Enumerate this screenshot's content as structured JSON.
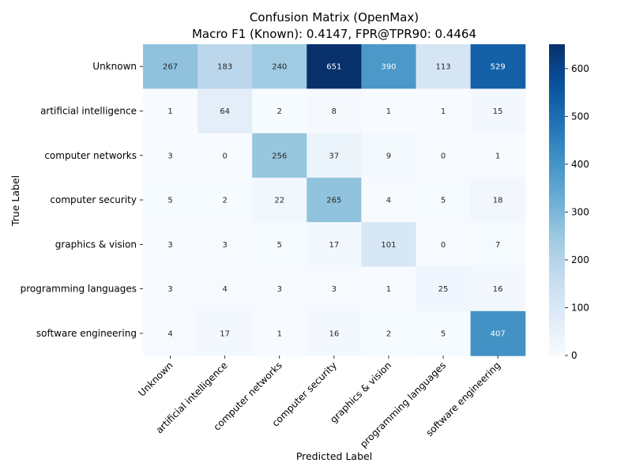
{
  "chart_data": {
    "type": "heatmap",
    "title": "Confusion Matrix (OpenMax)",
    "subtitle": "Macro F1 (Known): 0.4147, FPR@TPR90: 0.4464",
    "xlabel": "Predicted Label",
    "ylabel": "True Label",
    "x_categories": [
      "Unknown",
      "artificial intelligence",
      "computer networks",
      "computer security",
      "graphics & vision",
      "programming languages",
      "software engineering"
    ],
    "y_categories": [
      "Unknown",
      "artificial intelligence",
      "computer networks",
      "computer security",
      "graphics & vision",
      "programming languages",
      "software engineering"
    ],
    "values": [
      [
        267,
        183,
        240,
        651,
        390,
        113,
        529
      ],
      [
        1,
        64,
        2,
        8,
        1,
        1,
        15
      ],
      [
        3,
        0,
        256,
        37,
        9,
        0,
        1
      ],
      [
        5,
        2,
        22,
        265,
        4,
        5,
        18
      ],
      [
        3,
        3,
        5,
        17,
        101,
        0,
        7
      ],
      [
        3,
        4,
        3,
        3,
        1,
        25,
        16
      ],
      [
        4,
        17,
        1,
        16,
        2,
        5,
        407
      ]
    ],
    "colorbar": {
      "min": 0,
      "max": 651,
      "ticks": [
        0,
        100,
        200,
        300,
        400,
        500,
        600
      ]
    },
    "colormap": "Blues",
    "colormap_stops": [
      "#f7fbff",
      "#deebf7",
      "#c6dbef",
      "#9ecae1",
      "#6baed6",
      "#4292c6",
      "#2171b5",
      "#08519c",
      "#08306b"
    ]
  }
}
